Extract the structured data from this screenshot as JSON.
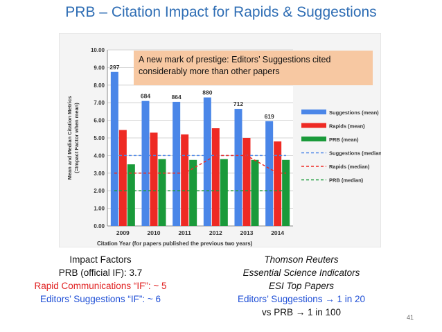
{
  "slide": {
    "title": "PRB – Citation Impact for Rapids & Suggestions",
    "page_number": "41",
    "callout": "A new mark of prestige: Editors’ Suggestions cited considerably more than other papers",
    "left_lines": [
      {
        "text": "Impact Factors",
        "color": "#111111"
      },
      {
        "text": "PRB (official IF): 3.7",
        "color": "#111111"
      },
      {
        "text": "Rapid Communications “IF”: ~ 5",
        "color": "#e02020"
      },
      {
        "text": "Editors’ Suggestions “IF”: ~ 6",
        "color": "#1f4fd6"
      }
    ],
    "right_lines": [
      {
        "text": "Thomson Reuters",
        "italic": true,
        "color": "#111111"
      },
      {
        "text": "Essential Science Indicators",
        "italic": true,
        "color": "#111111"
      },
      {
        "text": "ESI Top Papers",
        "italic": true,
        "color": "#111111"
      },
      {
        "text": "Editors’ Suggestions → 1 in 20",
        "italic": false,
        "color": "#1f4fd6"
      },
      {
        "text": "vs PRB → 1 in 100",
        "italic": false,
        "color": "#111111"
      }
    ]
  },
  "chart_data": {
    "type": "bar",
    "categories": [
      "2009",
      "2010",
      "2011",
      "2012",
      "2013",
      "2014"
    ],
    "xlabel": "Citation Year (for papers published the previous two years)",
    "ylabel_lines": [
      "Mean and Median Citation Metrics",
      "(=Impact Factor when mean)"
    ],
    "ylim": [
      0,
      10
    ],
    "yticks": [
      "0.00",
      "1.00",
      "2.00",
      "3.00",
      "4.00",
      "5.00",
      "6.00",
      "7.00",
      "8.00",
      "9.00",
      "10.00"
    ],
    "grid": true,
    "legend_position": "right",
    "bar_series": [
      {
        "name": "Suggestions (mean)",
        "color": "#4a86e8",
        "values": [
          8.75,
          7.1,
          7.05,
          7.3,
          6.65,
          5.95
        ]
      },
      {
        "name": "Rapids (mean)",
        "color": "#ee2a24",
        "values": [
          5.45,
          5.3,
          5.2,
          5.55,
          5.0,
          4.8
        ]
      },
      {
        "name": "PRB (mean)",
        "color": "#1a9a3a",
        "values": [
          3.5,
          3.8,
          3.75,
          3.8,
          3.75,
          3.75
        ]
      }
    ],
    "line_series": [
      {
        "name": "Suggestions (median)",
        "color": "#4a86e8",
        "values": [
          4,
          4,
          4,
          4,
          4,
          4
        ]
      },
      {
        "name": "Rapids (median)",
        "color": "#ee2a24",
        "values": [
          3,
          3,
          3,
          4,
          4,
          3
        ]
      },
      {
        "name": "PRB (median)",
        "color": "#1a9a3a",
        "values": [
          2,
          2,
          2,
          2,
          2,
          2
        ]
      }
    ],
    "bar_annotations": [
      "297",
      "684",
      "864",
      "880",
      "712",
      "619"
    ]
  }
}
